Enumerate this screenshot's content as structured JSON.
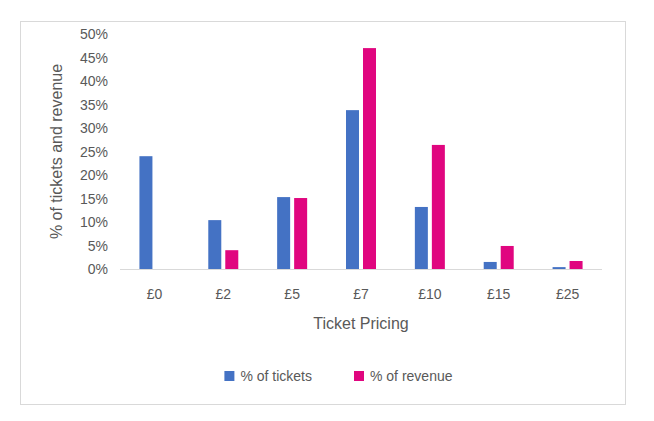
{
  "chart_data": {
    "type": "bar",
    "x_label": "Ticket Pricing",
    "y_label": "% of tickets and revenue",
    "categories": [
      "£0",
      "£2",
      "£5",
      "£7",
      "£10",
      "£15",
      "£25"
    ],
    "series": [
      {
        "name": "% of tickets",
        "color": "#4472c4",
        "values": [
          24.0,
          10.4,
          15.3,
          33.8,
          13.2,
          1.5,
          0.4
        ]
      },
      {
        "name": "% of revenue",
        "color": "#e0067f",
        "values": [
          0,
          4.0,
          15.1,
          47.0,
          26.4,
          4.9,
          1.7
        ]
      }
    ],
    "ylim": [
      0,
      50
    ],
    "yticks": [
      {
        "value": 0,
        "label": "0%"
      },
      {
        "value": 5,
        "label": "5%"
      },
      {
        "value": 10,
        "label": "10%"
      },
      {
        "value": 15,
        "label": "15%"
      },
      {
        "value": 20,
        "label": "20%"
      },
      {
        "value": 25,
        "label": "25%"
      },
      {
        "value": 30,
        "label": "30%"
      },
      {
        "value": 35,
        "label": "35%"
      },
      {
        "value": 40,
        "label": "40%"
      },
      {
        "value": 45,
        "label": "45%"
      },
      {
        "value": 50,
        "label": "50%"
      }
    ],
    "grid": false,
    "legend": "bottom"
  }
}
